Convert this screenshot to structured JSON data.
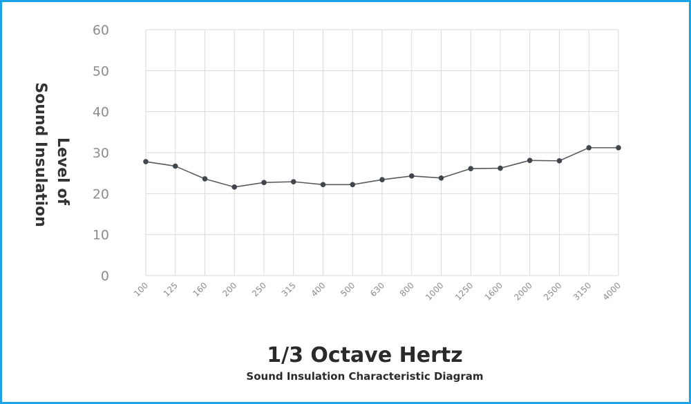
{
  "chart_data": {
    "type": "line",
    "title": "",
    "ylabel": [
      "Level of",
      "Sound Insulation"
    ],
    "xlabel": "1/3 Octave Hertz",
    "subtitle": "Sound Insulation Characteristic Diagram",
    "categories": [
      "100",
      "125",
      "160",
      "200",
      "250",
      "315",
      "400",
      "500",
      "630",
      "800",
      "1000",
      "1250",
      "1600",
      "2000",
      "2500",
      "3150",
      "4000"
    ],
    "series": [
      {
        "values": [
          27.8,
          26.7,
          23.6,
          21.6,
          22.7,
          22.9,
          22.2,
          22.2,
          23.4,
          24.3,
          23.8,
          26.1,
          26.2,
          28.1,
          28.0,
          31.2,
          31.2
        ]
      }
    ],
    "ylim": [
      0,
      60
    ],
    "yticks": [
      0,
      10,
      20,
      30,
      40,
      50,
      60
    ],
    "grid": true,
    "colors": {
      "line": "#555a60",
      "marker": "#41464c",
      "grid": "#d9d9d9",
      "frame_border": "#1aa3e8"
    }
  }
}
